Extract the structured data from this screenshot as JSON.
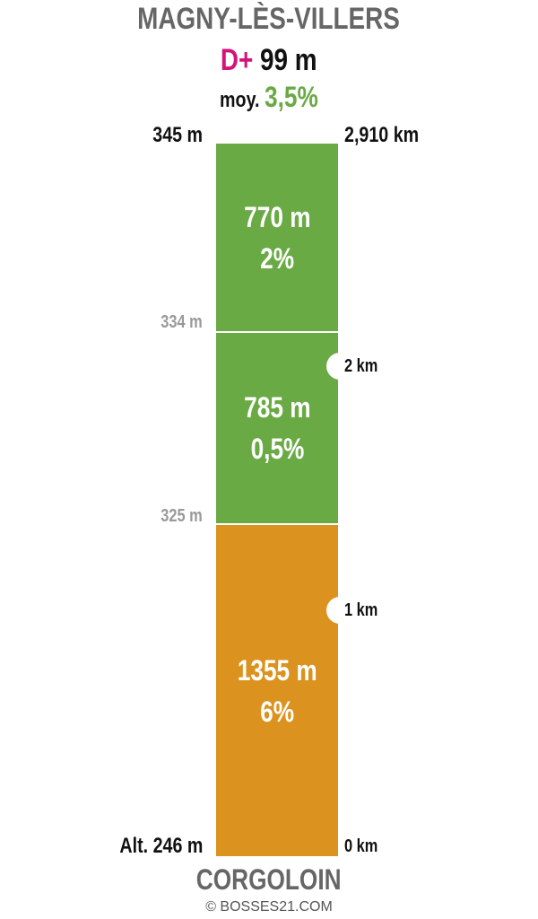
{
  "header": {
    "summit_name": "MAGNY-LÈS-VILLERS",
    "dplus_label": "D+",
    "dplus_value": "99 m",
    "avg_label": "moy.",
    "avg_value": "3,5%"
  },
  "colors": {
    "title_grey": "#666666",
    "dplus_magenta": "#d4147a",
    "green": "#6aaa45",
    "orange": "#dc921e",
    "grey_label": "#999999"
  },
  "segments": [
    {
      "length": "770 m",
      "gradient": "2%",
      "color": "#6aaa45"
    },
    {
      "length": "785 m",
      "gradient": "0,5%",
      "color": "#6aaa45"
    },
    {
      "length": "1355 m",
      "gradient": "6%",
      "color": "#dc921e"
    }
  ],
  "altitudes": {
    "top": "345 m",
    "mid1": "334 m",
    "mid2": "325 m",
    "bottom": "Alt. 246 m"
  },
  "distances": {
    "total": "2,910 km",
    "marker_2": "2 km",
    "marker_1": "1 km",
    "start": "0 km"
  },
  "footer": {
    "start_name": "CORGOLOIN",
    "copyright": "© BOSSES21.COM"
  }
}
